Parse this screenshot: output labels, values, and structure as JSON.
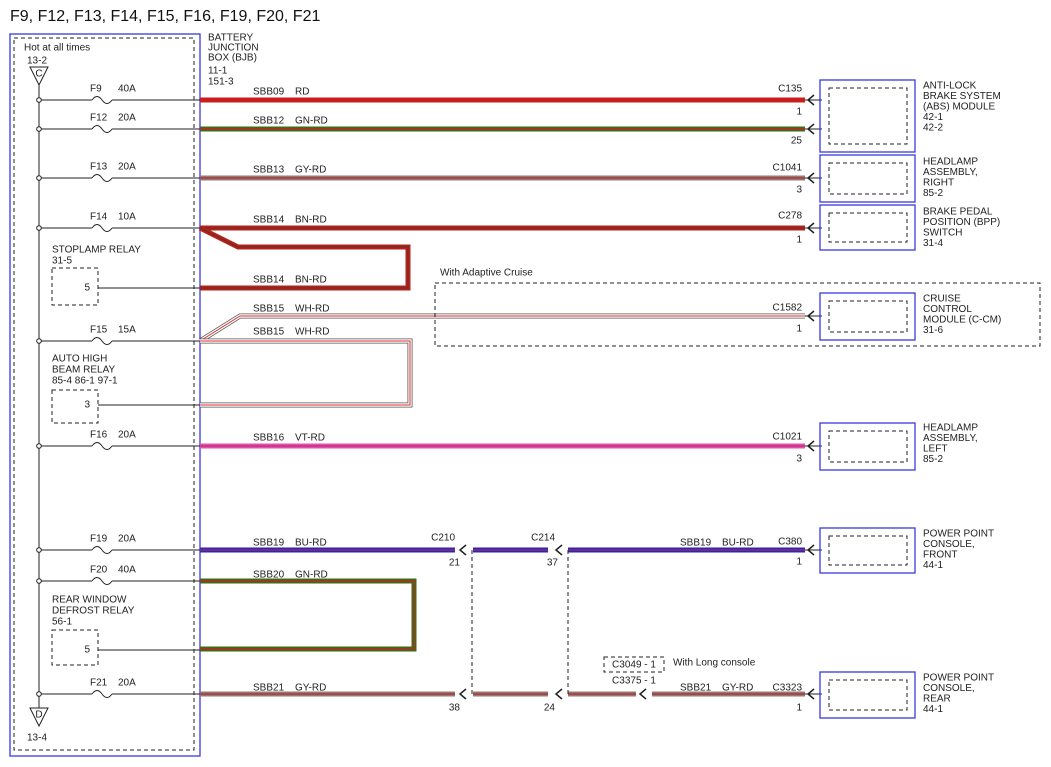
{
  "title": "F9, F12, F13, F14, F15, F16, F19, F20, F21",
  "bjb": {
    "hot": "Hot at all times",
    "top_ref": "13-2",
    "top_pin": "C",
    "bottom_pin": "D",
    "bottom_ref": "13-4",
    "label": [
      "BATTERY",
      "JUNCTION",
      "BOX (BJB)",
      "11-1",
      "151-3"
    ]
  },
  "fuses": [
    {
      "id": "F9",
      "rating": "40A"
    },
    {
      "id": "F12",
      "rating": "20A"
    },
    {
      "id": "F13",
      "rating": "20A"
    },
    {
      "id": "F14",
      "rating": "10A"
    },
    {
      "id": "F15",
      "rating": "15A"
    },
    {
      "id": "F16",
      "rating": "20A"
    },
    {
      "id": "F19",
      "rating": "20A"
    },
    {
      "id": "F20",
      "rating": "40A"
    },
    {
      "id": "F21",
      "rating": "20A"
    }
  ],
  "relays": [
    {
      "lines": [
        "STOPLAMP RELAY",
        "31-5"
      ],
      "pin": "5"
    },
    {
      "lines": [
        "AUTO HIGH",
        "BEAM RELAY",
        "85-4  86-1  97-1"
      ],
      "pin": "3"
    },
    {
      "lines": [
        "REAR WINDOW",
        "DEFROST RELAY",
        "56-1"
      ],
      "pin": "5"
    }
  ],
  "wire_labels": [
    {
      "circuit": "SBB09",
      "color": "RD"
    },
    {
      "circuit": "SBB12",
      "color": "GN-RD"
    },
    {
      "circuit": "SBB13",
      "color": "GY-RD"
    },
    {
      "circuit": "SBB14",
      "color": "BN-RD"
    },
    {
      "circuit": "SBB14",
      "color": "BN-RD"
    },
    {
      "circuit": "SBB15",
      "color": "WH-RD"
    },
    {
      "circuit": "SBB15",
      "color": "WH-RD"
    },
    {
      "circuit": "SBB16",
      "color": "VT-RD"
    },
    {
      "circuit": "SBB19",
      "color": "BU-RD"
    },
    {
      "circuit": "SBB19",
      "color": "BU-RD"
    },
    {
      "circuit": "SBB20",
      "color": "GN-RD"
    },
    {
      "circuit": "SBB21",
      "color": "GY-RD"
    },
    {
      "circuit": "SBB21",
      "color": "GY-RD"
    }
  ],
  "connector_labels": [
    "C135",
    "1",
    "25",
    "C1041",
    "3",
    "C278",
    "1",
    "C1582",
    "1",
    "C1021",
    "3",
    "C210",
    "21",
    "C214",
    "37",
    "C380",
    "1",
    "C3049 - 1",
    "C3375 - 1",
    "C3323",
    "1",
    "38",
    "24"
  ],
  "notes": [
    "With Adaptive Cruise",
    "With Long console"
  ],
  "modules": [
    {
      "lines": [
        "ANTI-LOCK",
        "BRAKE SYSTEM",
        "(ABS) MODULE",
        "42-1",
        "42-2"
      ]
    },
    {
      "lines": [
        "HEADLAMP",
        "ASSEMBLY,",
        "RIGHT",
        "85-2"
      ]
    },
    {
      "lines": [
        "BRAKE PEDAL",
        "POSITION (BPP)",
        "SWITCH",
        "31-4"
      ]
    },
    {
      "lines": [
        "CRUISE",
        "CONTROL",
        "MODULE (C-CM)",
        "31-6"
      ]
    },
    {
      "lines": [
        "HEADLAMP",
        "ASSEMBLY,",
        "LEFT",
        "85-2"
      ]
    },
    {
      "lines": [
        "POWER POINT",
        "CONSOLE,",
        "FRONT",
        "44-1"
      ]
    },
    {
      "lines": [
        "POWER POINT",
        "CONSOLE,",
        "REAR",
        "44-1"
      ]
    }
  ]
}
